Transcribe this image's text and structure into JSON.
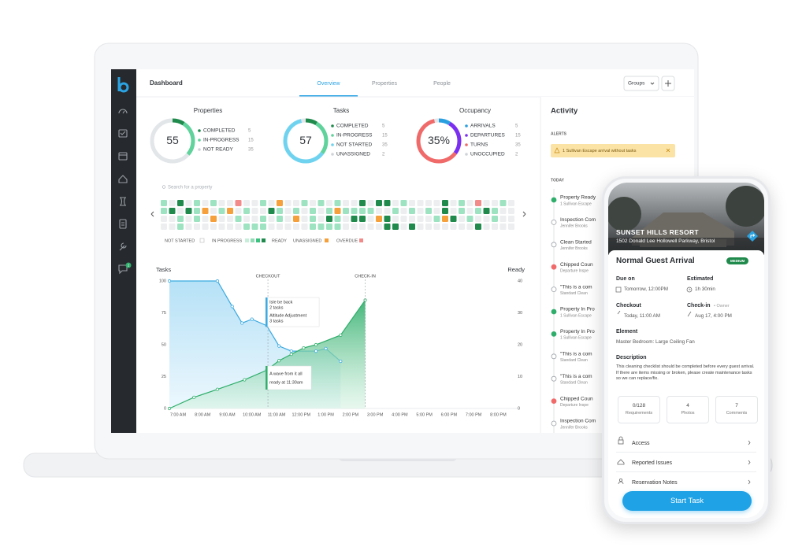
{
  "header": {
    "title": "Dashboard",
    "tabs": [
      "Overview",
      "Properties",
      "People"
    ],
    "groups": "Groups"
  },
  "summary": [
    {
      "title": "Properties",
      "center": "55",
      "legend": [
        {
          "label": "COMPLETED",
          "count": 5,
          "color": "#1f8a4c"
        },
        {
          "label": "IN-PROGRESS",
          "count": 15,
          "color": "#5fd39b"
        },
        {
          "label": "NOT READY",
          "count": 35,
          "color": "#e3e6e9"
        }
      ]
    },
    {
      "title": "Tasks",
      "center": "57",
      "legend": [
        {
          "label": "COMPLETED",
          "count": 5,
          "color": "#1f8a4c"
        },
        {
          "label": "IN-PROGRESS",
          "count": 15,
          "color": "#5fd39b"
        },
        {
          "label": "NOT STARTED",
          "count": 35,
          "color": "#6fd3f0"
        },
        {
          "label": "UNASSIGNED",
          "count": 2,
          "color": "#e3e6e9"
        }
      ]
    },
    {
      "title": "Occupancy",
      "center": "35%",
      "legend": [
        {
          "label": "ARRIVALS",
          "count": 5,
          "color": "#2a9fe0"
        },
        {
          "label": "DEPARTURES",
          "count": 15,
          "color": "#7b2ff0"
        },
        {
          "label": "TURNS",
          "count": 35,
          "color": "#f06a6a"
        },
        {
          "label": "UNOCCUPIED",
          "count": 2,
          "color": "#e3e6e9"
        }
      ]
    }
  ],
  "property_grid": {
    "search": "Search for a property",
    "legend": [
      "NOT STARTED",
      "IN PROGRESS",
      "READY",
      "UNASSIGNED",
      "OVERDUE"
    ]
  },
  "chart_data": {
    "type": "line",
    "y_label": "Tasks",
    "y2_label": "Ready",
    "xlim": [
      6.65,
      20.85
    ],
    "xticks": [
      {
        "value": 7,
        "label": "7:00 AM"
      },
      {
        "value": 8,
        "label": "8:00 AM"
      },
      {
        "value": 9,
        "label": "9:00 AM"
      },
      {
        "value": 10,
        "label": "10:00 AM"
      },
      {
        "value": 11,
        "label": "11:00 AM"
      },
      {
        "value": 12,
        "label": "12:00 PM"
      },
      {
        "value": 13,
        "label": "1:00 PM"
      },
      {
        "value": 14,
        "label": "2:00 PM"
      },
      {
        "value": 15,
        "label": "3:00 PM"
      },
      {
        "value": 16,
        "label": "4:00 PM"
      },
      {
        "value": 17,
        "label": "5:00 PM"
      },
      {
        "value": 18,
        "label": "6:00 PM"
      },
      {
        "value": 19,
        "label": "7:00 PM"
      },
      {
        "value": 20,
        "label": "8:00 PM"
      }
    ],
    "ylim": [
      0,
      100
    ],
    "yticks": [
      0,
      25,
      50,
      75,
      100
    ],
    "y2lim": [
      0,
      40
    ],
    "y2ticks": [
      0,
      10,
      20,
      30,
      40
    ],
    "series": [
      {
        "color": "#3aa9e0",
        "x": [
          6.65,
          8.6,
          9.2,
          9.6,
          10,
          10.6,
          11.1,
          11.6,
          12.6,
          13,
          13.6
        ],
        "values": [
          100,
          100,
          80,
          67,
          70,
          65,
          49,
          45,
          45,
          47,
          37
        ]
      },
      {
        "color": "#2fae6b",
        "axis": "y2",
        "x": [
          6.65,
          7.65,
          8.6,
          9.7,
          10.6,
          11.1,
          11.6,
          12.1,
          12.6,
          13.6,
          14.6
        ],
        "values": [
          0,
          3.5,
          6,
          9,
          12,
          15,
          17,
          19,
          20,
          23,
          34
        ]
      }
    ],
    "annotations": [
      {
        "x": 10.65,
        "label": "CHECKOUT"
      },
      {
        "x": 14.6,
        "label": "CHECK-IN"
      }
    ],
    "tooltips": [
      [
        "Isle be back",
        "2 tasks",
        "Altitude Adjustment",
        "3 tasks"
      ],
      [
        "A wave from it all",
        "ready at 11:30am"
      ]
    ]
  },
  "activity": {
    "title": "Activity",
    "alerts_heading": "ALERTS",
    "alert": "1 Sullivan Escape arrival without tasks",
    "today_heading": "TODAY",
    "items": [
      {
        "title": "Property Ready",
        "subtitle": "1 Sullivan Escape",
        "color": "#2fae6b"
      },
      {
        "title": "Inspection Com",
        "subtitle": "Jennifer Brooks",
        "color": "#ffffff"
      },
      {
        "title": "Clean Started",
        "subtitle": "Jennifer Brooks",
        "color": "#ffffff"
      },
      {
        "title": "Chipped Coun",
        "subtitle": "Departure Inspe",
        "color": "#f06a6a"
      },
      {
        "title": "\"This is a com",
        "subtitle": "Standard Clean",
        "color": "#ffffff"
      },
      {
        "title": "Property In Pro",
        "subtitle": "1 Sullivan Escape",
        "color": "#2fae6b"
      },
      {
        "title": "Property In Pro",
        "subtitle": "1 Sullivan Escape",
        "color": "#2fae6b"
      },
      {
        "title": "\"This is a com",
        "subtitle": "Standard Clean",
        "color": "#ffffff"
      },
      {
        "title": "\"This is a com",
        "subtitle": "Standard Clean",
        "color": "#ffffff"
      },
      {
        "title": "Chipped Coun",
        "subtitle": "Departure Inspe",
        "color": "#f06a6a"
      },
      {
        "title": "Inspection Com",
        "subtitle": "Jennifer Brooks",
        "color": "#ffffff"
      }
    ]
  },
  "task_card": {
    "property": "SUNSET HILLS RESORT",
    "address": "1502 Donald Lee Hollowell Parkway, Bristol",
    "title": "Normal Guest Arrival",
    "priority": "MEDIUM",
    "due_label": "Due on",
    "due_value": "Tomorrow, 12:00PM",
    "estimated_label": "Estimated",
    "estimated_value": "1h 30min",
    "checkout_label": "Checkout",
    "checkout_value": "Today, 11:00 AM",
    "checkin_label": "Check-in",
    "checkin_note": "• Owner",
    "checkin_value": "Aug 17, 4:00 PM",
    "element_label": "Element",
    "element_value": "Master Bedroom: Large Ceiling Fan",
    "description_label": "Description",
    "description": "This cleaning checklist should be completed before every guest arrival. If there are items missing or broken, please create maintenance tasks so we can replace/fix.",
    "stats": [
      {
        "value": "0/128",
        "label": "Requirements"
      },
      {
        "value": "4",
        "label": "Photos"
      },
      {
        "value": "7",
        "label": "Comments"
      }
    ],
    "sections": [
      "Access",
      "Reported Issues",
      "Reservation Notes"
    ],
    "button": "Start Task"
  }
}
